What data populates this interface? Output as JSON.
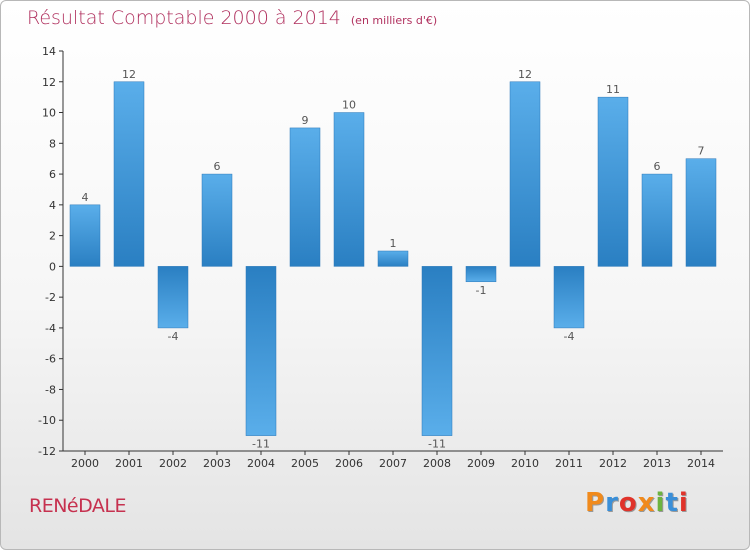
{
  "header": {
    "title": "Résultat Comptable 2000 à 2014",
    "subtitle": "(en milliers d'€)"
  },
  "footer": {
    "commune": "RENéDALE",
    "logo_text": "Proxiti",
    "logo_colors": [
      "#f08a1c",
      "#3a8fd8",
      "#e0332a",
      "#f08a1c",
      "#6cb33f",
      "#3a8fd8",
      "#e0332a"
    ]
  },
  "chart_data": {
    "type": "bar",
    "title": "Résultat Comptable 2000 à 2014",
    "subtitle": "(en milliers d'€)",
    "categories": [
      "2000",
      "2001",
      "2002",
      "2003",
      "2004",
      "2005",
      "2006",
      "2007",
      "2008",
      "2009",
      "2010",
      "2011",
      "2012",
      "2013",
      "2014"
    ],
    "values": [
      4,
      12,
      -4,
      6,
      -11,
      9,
      10,
      1,
      -11,
      -1,
      12,
      -4,
      11,
      6,
      7
    ],
    "ylim": [
      -12,
      14
    ],
    "yticks": [
      14,
      12,
      10,
      8,
      6,
      4,
      2,
      0,
      -2,
      -4,
      -6,
      -8,
      -10,
      -12
    ],
    "xlabel": "",
    "ylabel": "",
    "grid": false,
    "legend": "none",
    "bar_color_light": "#5aaeea",
    "bar_color_dark": "#2a7fc2"
  }
}
